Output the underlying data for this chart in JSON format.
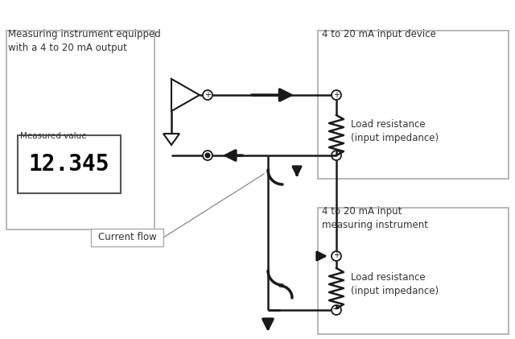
{
  "bg_color": "#ffffff",
  "fig_w": 6.4,
  "fig_h": 4.21,
  "box1_label": "Measuring instrument equipped\nwith a 4 to 20 mA output",
  "box2_label": "4 to 20 mA input device",
  "box3_label": "4 to 20 mA input\nmeasuring instrument",
  "measured_label": "Measured value",
  "display_value": "12.345",
  "load_res_label1": "Load resistance\n(input impedance)",
  "load_res_label2": "Load resistance\n(input impedance)",
  "current_flow_label": "Current flow",
  "line_color": "#1a1a1a",
  "box_edge_color": "#aaaaaa",
  "text_color": "#333333"
}
